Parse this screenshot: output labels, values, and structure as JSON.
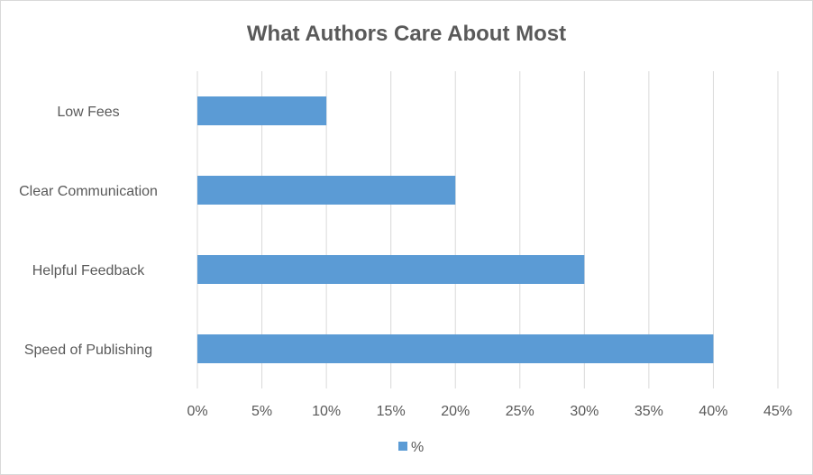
{
  "chart_data": {
    "type": "bar",
    "orientation": "horizontal",
    "title": "What Authors Care About Most",
    "categories": [
      "Low Fees",
      "Clear Communication",
      "Helpful Feedback",
      "Speed of Publishing"
    ],
    "series": [
      {
        "name": "%",
        "values": [
          10,
          20,
          30,
          40
        ],
        "color": "#5b9bd5"
      }
    ],
    "xlim": [
      0,
      45
    ],
    "xticks": [
      0,
      5,
      10,
      15,
      20,
      25,
      30,
      35,
      40,
      45
    ],
    "tick_labels": [
      "0%",
      "5%",
      "10%",
      "15%",
      "20%",
      "25%",
      "30%",
      "35%",
      "40%",
      "45%"
    ],
    "grid": true,
    "gridline_color": "#d9d9d9",
    "legend_position": "bottom"
  }
}
